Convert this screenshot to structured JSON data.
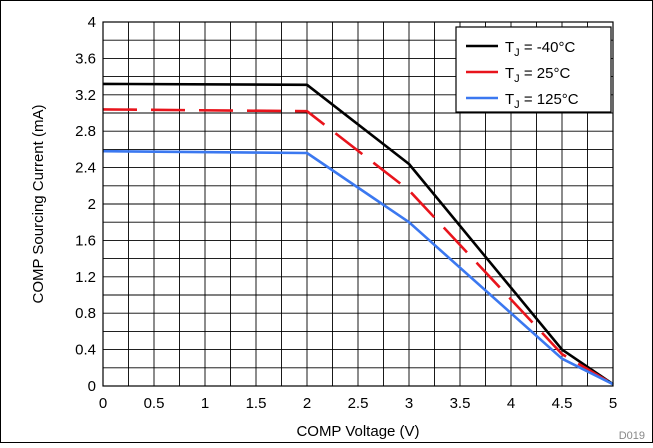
{
  "chart_data": {
    "type": "line",
    "title": "",
    "xlabel": "COMP Voltage (V)",
    "ylabel": "COMP Sourcing Current (mA)",
    "xlim": [
      0,
      5
    ],
    "ylim": [
      0,
      4
    ],
    "x_ticks": [
      "0",
      "0.5",
      "1",
      "1.5",
      "2",
      "2.5",
      "3",
      "3.5",
      "4",
      "4.5",
      "5"
    ],
    "y_ticks": [
      "0",
      "0.4",
      "0.8",
      "1.2",
      "1.6",
      "2",
      "2.4",
      "2.8",
      "3.2",
      "3.6",
      "4"
    ],
    "grid": true,
    "legend_position": "top-right",
    "figure_id": "D019",
    "series": [
      {
        "name_prefix": "T",
        "name_sub": "J",
        "name_suffix": " = -40°C",
        "color": "#000000",
        "dash": "solid",
        "x": [
          0,
          2,
          3,
          4.5,
          5
        ],
        "y": [
          3.32,
          3.31,
          2.44,
          0.4,
          0.02
        ]
      },
      {
        "name_prefix": "T",
        "name_sub": "J",
        "name_suffix": " = 25°C",
        "color": "#e8141c",
        "dash": "dashed",
        "x": [
          0,
          2,
          3,
          4.5,
          5
        ],
        "y": [
          3.04,
          3.02,
          2.15,
          0.35,
          0.02
        ]
      },
      {
        "name_prefix": "T",
        "name_sub": "J",
        "name_suffix": " = 125°C",
        "color": "#3b78f0",
        "dash": "solid",
        "x": [
          0,
          2,
          3,
          4.5,
          5
        ],
        "y": [
          2.58,
          2.56,
          1.8,
          0.3,
          0.02
        ]
      }
    ]
  }
}
